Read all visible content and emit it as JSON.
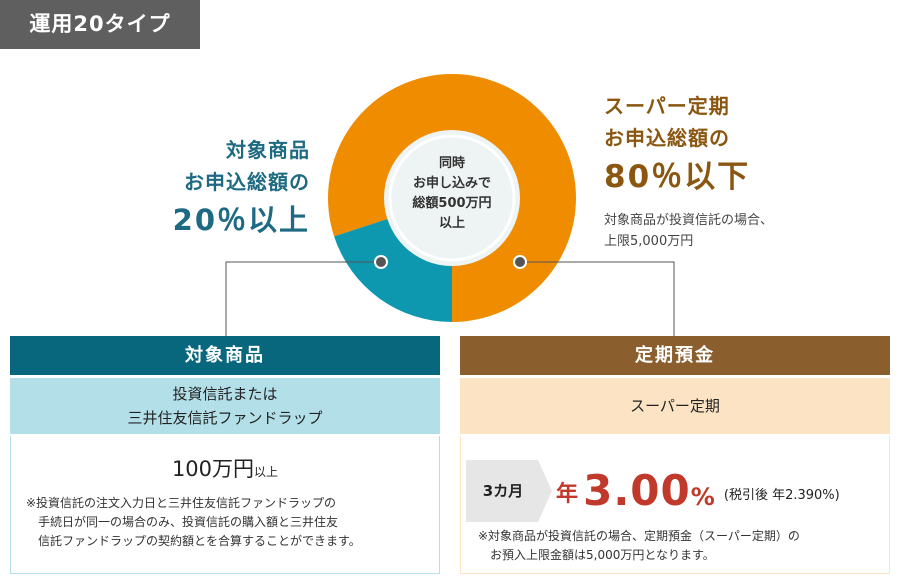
{
  "tag": "運用20タイプ",
  "colors": {
    "orange": "#ef8c00",
    "teal": "#0e98b0",
    "teal_dark": "#08667d",
    "brown": "#8a5f2d",
    "rate_red": "#c0392b"
  },
  "donut": {
    "center": [
      "同時",
      "お申し込みで",
      "総額500万円",
      "以上"
    ],
    "target_share": 20,
    "deposit_share": 80
  },
  "left_label": {
    "line1": "対象商品",
    "line2": "お申込総額の",
    "big": "20％以上"
  },
  "right_label": {
    "line1": "スーパー定期",
    "line2": "お申込総額の",
    "big": "80％以下",
    "note1": "対象商品が投資信託の場合、",
    "note2": "上限5,000万円"
  },
  "left_panel": {
    "header": "対象商品",
    "sub1": "投資信託または",
    "sub2": "三井住友信託ファンドラップ",
    "amount": "100万円",
    "amount_unit": "以上",
    "note1": "※投資信託の注文入力日と三井住友信託ファンドラップの",
    "note2": "　手続日が同一の場合のみ、投資信託の購入額と三井住友",
    "note3": "　信託ファンドラップの契約額とを合算することができます。"
  },
  "right_panel": {
    "header": "定期預金",
    "sub": "スーパー定期",
    "badge": "3カ月",
    "rate_prefix": "年",
    "rate_value": "3.00",
    "rate_unit": "%",
    "after_tax": "(税引後 年2.390%)",
    "note1": "※対象商品が投資信託の場合、定期預金（スーパー定期）の",
    "note2": "　お預入上限金額は5,000万円となります。"
  }
}
